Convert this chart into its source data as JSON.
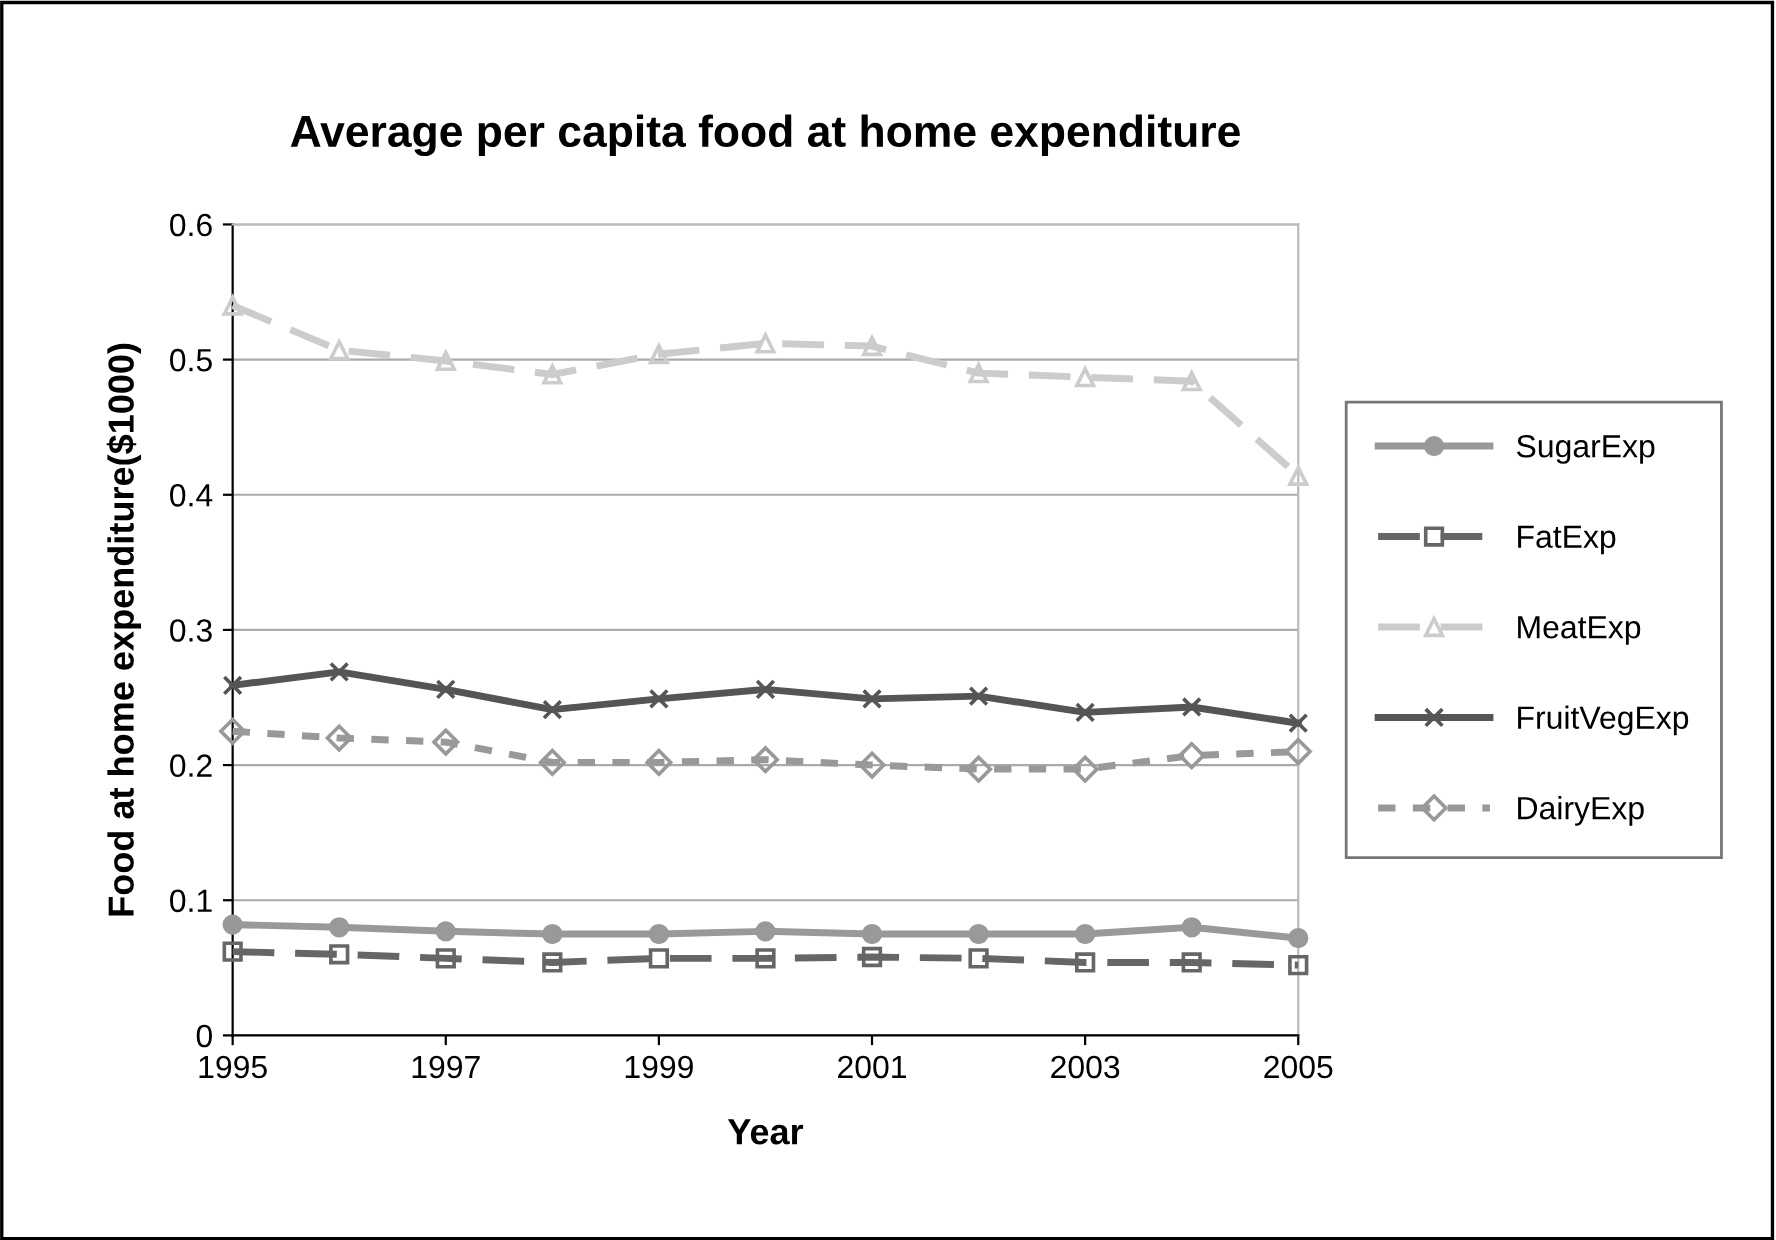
{
  "chart_data": {
    "type": "line",
    "title": "Average per capita food at home expenditure",
    "xlabel": "Year",
    "ylabel": "Food at home expenditure($1000)",
    "x": [
      1995,
      1996,
      1997,
      1998,
      1999,
      2000,
      2001,
      2002,
      2003,
      2004,
      2005
    ],
    "xlim": [
      1995,
      2005
    ],
    "xticks": [
      1995,
      1997,
      1999,
      2001,
      2003,
      2005
    ],
    "ylim": [
      0,
      0.6
    ],
    "yticks": [
      0,
      0.1,
      0.2,
      0.3,
      0.4,
      0.5,
      0.6
    ],
    "grid": "y",
    "legend": "right",
    "series": [
      {
        "name": "SugarExp",
        "color": "#999999",
        "marker": "circle",
        "line_style": "solid",
        "values": [
          0.082,
          0.08,
          0.077,
          0.075,
          0.075,
          0.077,
          0.075,
          0.075,
          0.075,
          0.08,
          0.072
        ]
      },
      {
        "name": "FatExp",
        "color": "#666666",
        "marker": "square",
        "line_style": "dashed",
        "values": [
          0.062,
          0.06,
          0.057,
          0.054,
          0.057,
          0.057,
          0.058,
          0.057,
          0.054,
          0.054,
          0.052
        ]
      },
      {
        "name": "MeatExp",
        "color": "#cccccc",
        "marker": "triangle",
        "line_style": "dashed",
        "values": [
          0.54,
          0.507,
          0.499,
          0.489,
          0.504,
          0.512,
          0.51,
          0.49,
          0.487,
          0.484,
          0.414
        ]
      },
      {
        "name": "FruitVegExp",
        "color": "#555555",
        "marker": "cross",
        "line_style": "solid",
        "values": [
          0.259,
          0.269,
          0.256,
          0.241,
          0.249,
          0.256,
          0.249,
          0.251,
          0.239,
          0.243,
          0.231
        ]
      },
      {
        "name": "DairyExp",
        "color": "#999999",
        "marker": "diamond",
        "line_style": "dotted",
        "values": [
          0.225,
          0.22,
          0.217,
          0.202,
          0.202,
          0.204,
          0.2,
          0.197,
          0.197,
          0.207,
          0.21
        ]
      }
    ]
  }
}
